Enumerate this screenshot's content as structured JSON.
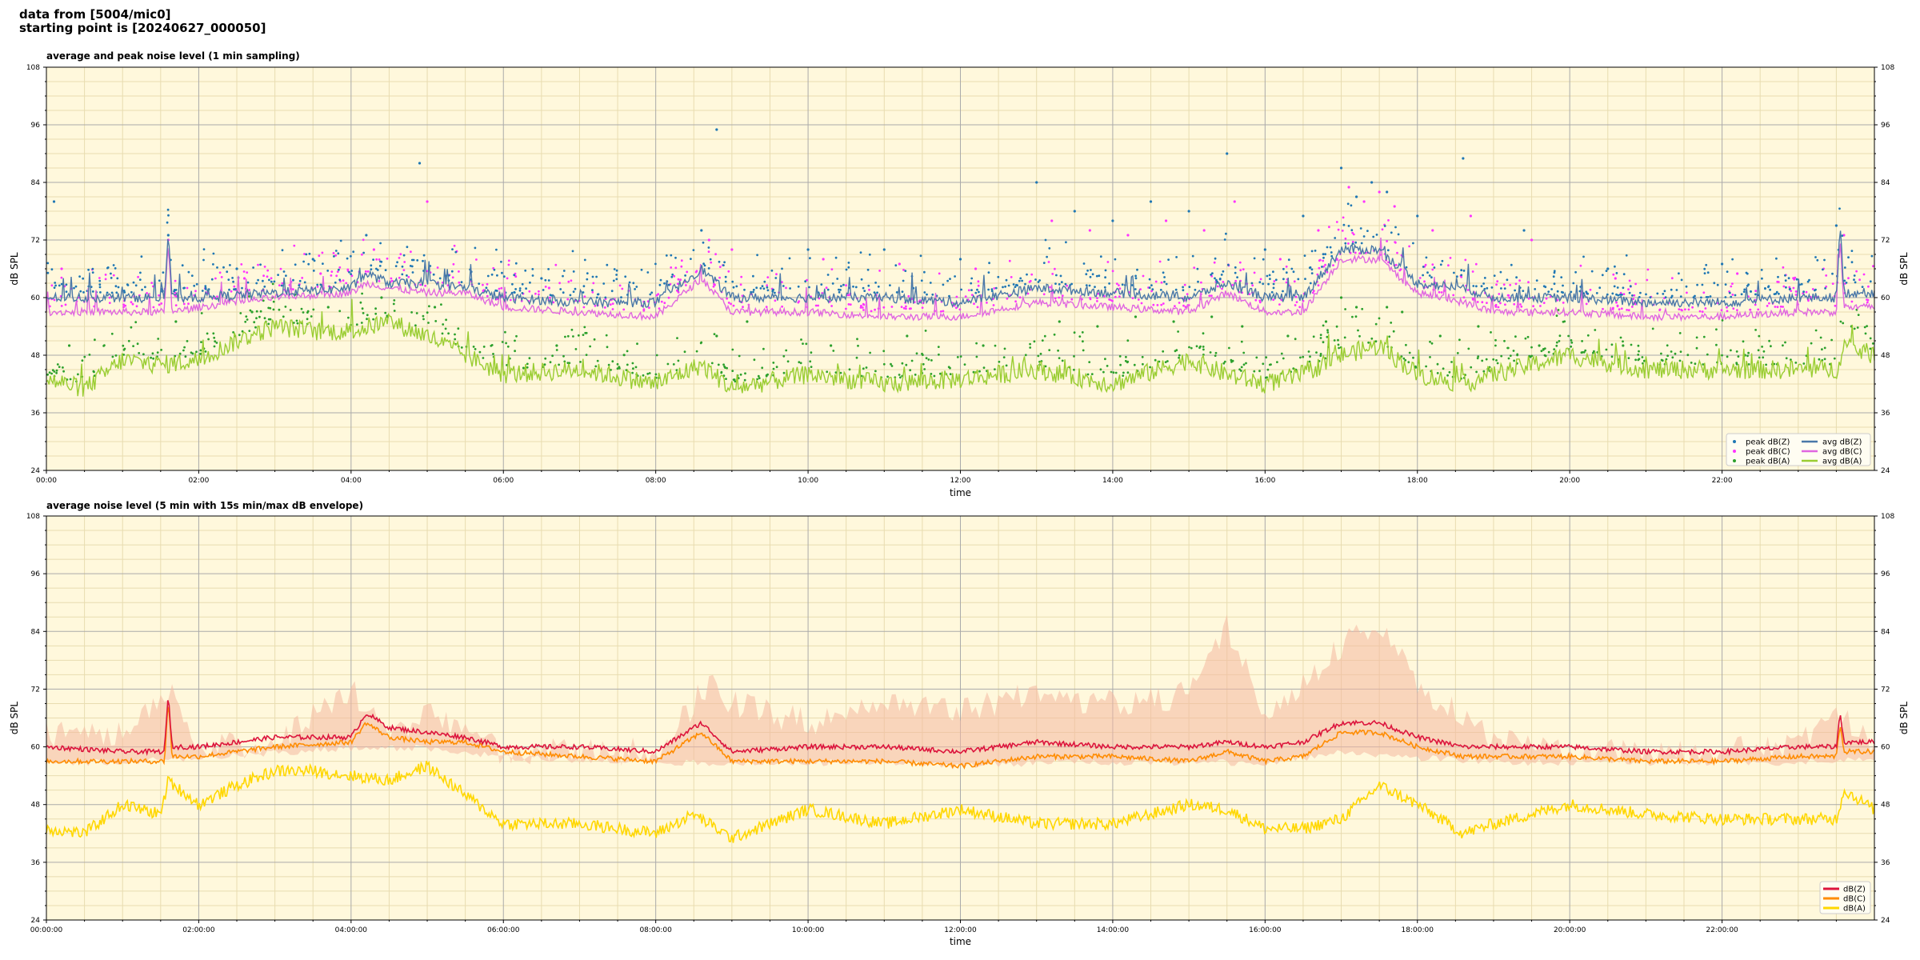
{
  "header": {
    "line1": "data from [5004/mic0]",
    "line2": "starting point is [20240627_000050]"
  },
  "colors": {
    "plot_bg": "#fff8dc",
    "grid_major": "#aaaaaa",
    "grid_minor": "#e8dcb0",
    "peak_z": "#1f77b4",
    "peak_c": "#ff33ff",
    "peak_a": "#2ca02c",
    "avg_z": "#4a78a8",
    "avg_c": "#e066e0",
    "avg_a": "#9acd32",
    "db_z": "#dc143c",
    "db_c": "#ff8c00",
    "db_a": "#ffd700",
    "envelope": "#f4b8a0"
  },
  "chart_data": [
    {
      "type": "line",
      "title": "average and peak noise level (1 min sampling)",
      "xlabel": "time",
      "ylabel": "dB SPL",
      "xlim_hours": [
        0,
        24
      ],
      "ylim": [
        24,
        108
      ],
      "yticks": [
        24,
        36,
        48,
        60,
        72,
        84,
        96,
        108
      ],
      "xtick_labels": [
        "00:00",
        "02:00",
        "04:00",
        "06:00",
        "08:00",
        "10:00",
        "12:00",
        "14:00",
        "16:00",
        "18:00",
        "20:00",
        "22:00"
      ],
      "grid": true,
      "legend_position": "lower-right",
      "legend": [
        "peak dB(Z)",
        "peak dB(C)",
        "peak dB(A)",
        "avg dB(Z)",
        "avg dB(C)",
        "avg dB(A)"
      ],
      "series": [
        {
          "name": "avg dB(Z)",
          "x_hours": [
            0,
            1.55,
            1.6,
            1.65,
            2,
            3,
            4,
            4.2,
            4.5,
            5,
            5.5,
            6,
            7,
            8,
            8.6,
            9,
            10,
            11,
            12,
            13,
            14,
            15,
            15.5,
            16,
            16.5,
            17,
            17.5,
            18,
            18.6,
            19,
            20,
            21,
            22,
            23,
            23.5,
            23.55,
            23.6,
            24
          ],
          "values": [
            60,
            60,
            74,
            60,
            60,
            61,
            62,
            65,
            63,
            63,
            62,
            60,
            59,
            59,
            66,
            60,
            60,
            60,
            59,
            62,
            61,
            60,
            63,
            60,
            60,
            70,
            70,
            63,
            62,
            60,
            60,
            59,
            59,
            60,
            60,
            75,
            61,
            61
          ]
        },
        {
          "name": "avg dB(C)",
          "x_hours": [
            0,
            1.55,
            1.6,
            1.65,
            2,
            3,
            4,
            4.2,
            4.5,
            5,
            5.5,
            6,
            7,
            8,
            8.6,
            9,
            10,
            11,
            12,
            13,
            14,
            15,
            15.5,
            16,
            16.5,
            17,
            17.5,
            18,
            18.6,
            19,
            20,
            21,
            22,
            23,
            23.5,
            23.55,
            23.6,
            24
          ],
          "values": [
            57,
            57,
            72,
            57,
            58,
            60,
            61,
            63,
            62,
            61,
            61,
            58,
            57,
            56,
            64,
            57,
            57,
            56,
            56,
            59,
            58,
            57,
            61,
            57,
            57,
            68,
            68,
            61,
            59,
            57,
            57,
            56,
            56,
            57,
            57,
            73,
            58,
            58
          ]
        },
        {
          "name": "avg dB(A)",
          "x_hours": [
            0,
            0.5,
            1,
            1.5,
            2,
            2.5,
            3,
            3.5,
            4,
            4.5,
            5,
            5.5,
            6,
            7,
            8,
            8.6,
            9,
            10,
            11,
            12,
            13,
            14,
            15,
            15.5,
            16,
            16.5,
            17,
            17.5,
            18,
            18.6,
            19,
            20,
            21,
            22,
            23,
            23.5,
            23.6,
            24
          ],
          "values": [
            43,
            41,
            47,
            46,
            47,
            51,
            54,
            53,
            53,
            55,
            52,
            48,
            44,
            45,
            42,
            46,
            41,
            44,
            42,
            43,
            45,
            42,
            47,
            44,
            42,
            44,
            48,
            50,
            44,
            42,
            44,
            48,
            45,
            45,
            45,
            45,
            50,
            48
          ]
        },
        {
          "name": "peak dB(Z)",
          "x_hours": [
            0.1,
            1.6,
            2.5,
            3.5,
            4.2,
            4.9,
            6.5,
            8.6,
            8.8,
            10,
            11,
            12,
            13,
            13.5,
            14,
            14.5,
            15,
            15.5,
            16,
            16.5,
            17,
            17.2,
            17.4,
            17.6,
            18,
            18.6,
            19.4,
            20.5,
            22,
            23.5
          ],
          "values": [
            80,
            73,
            66,
            68,
            73,
            88,
            64,
            74,
            95,
            70,
            70,
            68,
            84,
            78,
            76,
            80,
            78,
            90,
            70,
            77,
            87,
            81,
            84,
            82,
            77,
            89,
            74,
            66,
            67,
            75
          ]
        },
        {
          "name": "peak dB(C)",
          "x_hours": [
            0.2,
            1.6,
            2.6,
            3.6,
            4.3,
            5,
            6.6,
            8.7,
            9,
            10.2,
            11.2,
            12.2,
            13.2,
            13.7,
            14.2,
            14.7,
            15.2,
            15.6,
            16.2,
            16.7,
            17.1,
            17.3,
            17.5,
            17.7,
            18.2,
            18.7,
            19.5,
            20.6,
            22.2,
            23.6
          ],
          "values": [
            66,
            72,
            64,
            65,
            70,
            80,
            62,
            72,
            70,
            68,
            67,
            66,
            76,
            74,
            73,
            76,
            74,
            80,
            68,
            74,
            83,
            80,
            82,
            79,
            74,
            77,
            72,
            64,
            65,
            73
          ]
        },
        {
          "name": "peak dB(A)",
          "x_hours": [
            0.3,
            1.7,
            2.7,
            3.7,
            4.4,
            5.1,
            6.7,
            8.8,
            9.2,
            10.3,
            11.3,
            12.3,
            13.3,
            13.8,
            14.3,
            14.8,
            15.3,
            15.7,
            16.3,
            16.8,
            17,
            17.2,
            17.6,
            17.8,
            18.3,
            18.8,
            19.6,
            20.7,
            22.3,
            23.7
          ],
          "values": [
            50,
            55,
            57,
            58,
            60,
            58,
            50,
            52,
            55,
            50,
            52,
            50,
            55,
            54,
            56,
            55,
            56,
            54,
            52,
            55,
            60,
            58,
            58,
            57,
            52,
            54,
            50,
            50,
            48,
            54
          ]
        }
      ]
    },
    {
      "type": "line",
      "title": "average noise level (5 min with 15s min/max dB envelope)",
      "xlabel": "time",
      "ylabel": "dB SPL",
      "xlim_hours": [
        0,
        24
      ],
      "ylim": [
        24,
        108
      ],
      "yticks": [
        24,
        36,
        48,
        60,
        72,
        84,
        96,
        108
      ],
      "xtick_labels": [
        "00:00:00",
        "02:00:00",
        "04:00:00",
        "06:00:00",
        "08:00:00",
        "10:00:00",
        "12:00:00",
        "14:00:00",
        "16:00:00",
        "18:00:00",
        "20:00:00",
        "22:00:00"
      ],
      "grid": true,
      "legend_position": "lower-right",
      "legend": [
        "dB(Z)",
        "dB(C)",
        "dB(A)"
      ],
      "series": [
        {
          "name": "dB(Z)",
          "x_hours": [
            0,
            1,
            1.55,
            1.6,
            1.65,
            2,
            3,
            4,
            4.2,
            4.5,
            5,
            5.5,
            6,
            7,
            8,
            8.6,
            9,
            10,
            11,
            12,
            13,
            14,
            15,
            15.5,
            16,
            16.5,
            17,
            17.5,
            18,
            18.6,
            19,
            20,
            21,
            22,
            23,
            23.5,
            23.55,
            23.6,
            24
          ],
          "values": [
            60,
            59,
            59,
            71,
            60,
            60,
            62,
            62,
            67,
            64,
            63,
            62,
            60,
            60,
            59,
            65,
            59,
            60,
            60,
            59,
            61,
            60,
            60,
            61,
            60,
            61,
            65,
            65,
            62,
            60,
            60,
            60,
            59,
            59,
            60,
            60,
            67,
            61,
            61
          ]
        },
        {
          "name": "dB(C)",
          "x_hours": [
            0,
            1,
            1.55,
            1.6,
            1.65,
            2,
            3,
            4,
            4.2,
            4.5,
            5,
            5.5,
            6,
            7,
            8,
            8.6,
            9,
            10,
            11,
            12,
            13,
            14,
            15,
            15.5,
            16,
            16.5,
            17,
            17.5,
            18,
            18.6,
            19,
            20,
            21,
            22,
            23,
            23.5,
            23.55,
            23.6,
            24
          ],
          "values": [
            57,
            57,
            57,
            70,
            58,
            58,
            60,
            61,
            65,
            62,
            61,
            61,
            59,
            58,
            57,
            63,
            57,
            57,
            57,
            56,
            58,
            58,
            57,
            59,
            57,
            58,
            63,
            63,
            60,
            58,
            58,
            58,
            57,
            57,
            58,
            58,
            65,
            59,
            59
          ]
        },
        {
          "name": "dB(A)",
          "x_hours": [
            0,
            0.5,
            1,
            1.5,
            1.6,
            2,
            2.5,
            3,
            3.5,
            4,
            4.5,
            5,
            5.5,
            6,
            7,
            8,
            8.5,
            9,
            10,
            11,
            12,
            13,
            14,
            15,
            15.5,
            16,
            16.5,
            17,
            17.5,
            18,
            18.6,
            19,
            20,
            21,
            22,
            23,
            23.5,
            23.6,
            24
          ],
          "values": [
            43,
            42,
            48,
            46,
            53,
            48,
            52,
            55,
            55,
            54,
            53,
            56,
            50,
            44,
            44,
            42,
            46,
            41,
            47,
            44,
            47,
            44,
            44,
            48,
            47,
            43,
            43,
            45,
            52,
            48,
            42,
            44,
            48,
            46,
            45,
            45,
            45,
            51,
            47
          ]
        },
        {
          "name": "envelope max",
          "x_hours": [
            0,
            1,
            1.6,
            2,
            3,
            4,
            4.5,
            5,
            6,
            8,
            8.7,
            9,
            10,
            11,
            12,
            13,
            14,
            15,
            15.5,
            16,
            16.5,
            17,
            17.5,
            18,
            19,
            20,
            21,
            22,
            23,
            23.6,
            24
          ],
          "values": [
            66,
            66,
            75,
            63,
            64,
            75,
            66,
            70,
            62,
            62,
            76,
            72,
            68,
            72,
            70,
            74,
            72,
            74,
            88,
            70,
            76,
            84,
            88,
            76,
            64,
            63,
            62,
            62,
            64,
            70,
            62
          ]
        },
        {
          "name": "envelope min",
          "x_hours": [
            0,
            1,
            2,
            3,
            4,
            5,
            6,
            8,
            9,
            10,
            11,
            12,
            13,
            14,
            15,
            16,
            17,
            18,
            19,
            20,
            21,
            22,
            23,
            24
          ],
          "values": [
            56,
            56,
            57,
            58,
            59,
            59,
            57,
            56,
            56,
            56,
            56,
            55,
            56,
            56,
            56,
            56,
            58,
            57,
            56,
            56,
            56,
            56,
            56,
            57
          ]
        }
      ]
    }
  ]
}
